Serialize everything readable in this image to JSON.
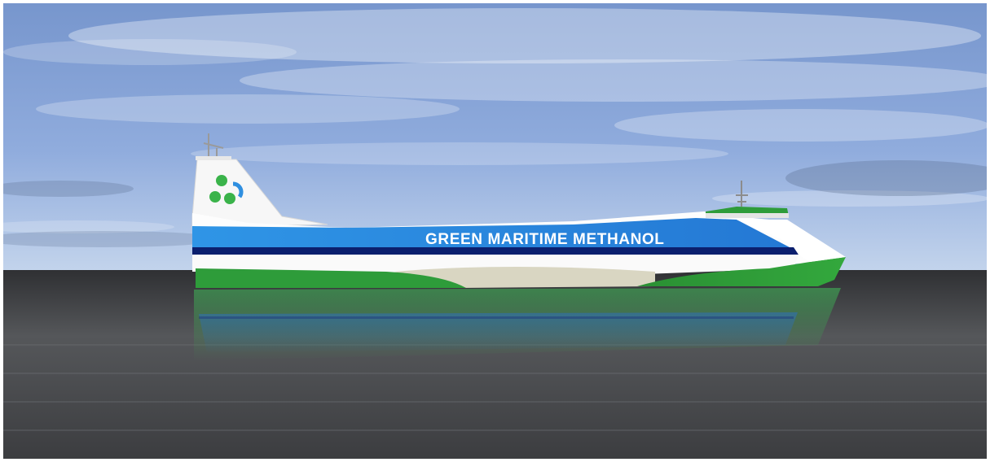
{
  "scene": {
    "ship_name": "GREEN MARITIME METHANOL",
    "logo_icon": "three-green-circles-logo-icon",
    "colors": {
      "sky_top": "#6f8fc9",
      "sky_bottom": "#b7cdea",
      "sea": "#4a4c4f",
      "hull_blue": "#2b8fe0",
      "hull_navy": "#0b1f6e",
      "hull_white": "#fbfbfb",
      "hull_green": "#2e9c3a",
      "hull_beige": "#d9d6c2"
    }
  }
}
